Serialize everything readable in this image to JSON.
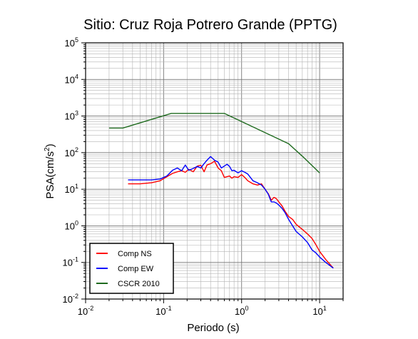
{
  "chart_data": {
    "type": "line",
    "title": "Sitio: Cruz Roja Potrero Grande (PPTG)",
    "xlabel": "Periodo (s)",
    "ylabel": "PSA(cm/s",
    "ylabel_sup": "2",
    "ylabel_close": ")",
    "x_scale": "log",
    "y_scale": "log",
    "xlim": [
      0.01,
      20
    ],
    "ylim": [
      0.01,
      100000
    ],
    "grid": true,
    "legend_position": "bottom-left",
    "x_ticks": [
      {
        "value": 0.01,
        "base": "10",
        "exp": "-2"
      },
      {
        "value": 0.1,
        "base": "10",
        "exp": "-1"
      },
      {
        "value": 1,
        "base": "10",
        "exp": "0"
      },
      {
        "value": 10,
        "base": "10",
        "exp": "1"
      }
    ],
    "y_ticks": [
      {
        "value": 0.01,
        "base": "10",
        "exp": "-2"
      },
      {
        "value": 0.1,
        "base": "10",
        "exp": "-1"
      },
      {
        "value": 1,
        "base": "10",
        "exp": "0"
      },
      {
        "value": 10,
        "base": "10",
        "exp": "1"
      },
      {
        "value": 100,
        "base": "10",
        "exp": "2"
      },
      {
        "value": 1000,
        "base": "10",
        "exp": "3"
      },
      {
        "value": 10000,
        "base": "10",
        "exp": "4"
      },
      {
        "value": 100000,
        "base": "10",
        "exp": "5"
      }
    ],
    "series": [
      {
        "name": "Comp NS",
        "color": "#ff0000",
        "x": [
          0.035,
          0.05,
          0.07,
          0.09,
          0.11,
          0.13,
          0.15,
          0.17,
          0.19,
          0.21,
          0.24,
          0.27,
          0.3,
          0.33,
          0.36,
          0.4,
          0.45,
          0.5,
          0.55,
          0.6,
          0.65,
          0.7,
          0.75,
          0.8,
          0.9,
          1.0,
          1.1,
          1.2,
          1.4,
          1.6,
          1.8,
          2.0,
          2.2,
          2.4,
          2.6,
          2.8,
          3.0,
          3.3,
          3.6,
          4.0,
          4.5,
          5.0,
          6.0,
          7.0,
          8.0,
          9.0,
          10.0,
          12.0,
          15.0
        ],
        "y": [
          14,
          14,
          15,
          17,
          22,
          27,
          30,
          32,
          29,
          35,
          30,
          43,
          45,
          30,
          46,
          50,
          58,
          38,
          32,
          21,
          22,
          23,
          20,
          22,
          21,
          25,
          21,
          17,
          14,
          13,
          14,
          10,
          7.5,
          5,
          6,
          5.5,
          4.5,
          3.5,
          2.5,
          1.8,
          1.5,
          1.1,
          0.8,
          0.6,
          0.45,
          0.3,
          0.2,
          0.12,
          0.07
        ]
      },
      {
        "name": "Comp EW",
        "color": "#0000ff",
        "x": [
          0.035,
          0.05,
          0.07,
          0.09,
          0.11,
          0.13,
          0.15,
          0.17,
          0.19,
          0.21,
          0.24,
          0.27,
          0.3,
          0.33,
          0.36,
          0.4,
          0.45,
          0.5,
          0.55,
          0.6,
          0.65,
          0.7,
          0.75,
          0.8,
          0.9,
          1.0,
          1.1,
          1.2,
          1.4,
          1.6,
          1.8,
          2.0,
          2.2,
          2.4,
          2.6,
          2.8,
          3.0,
          3.3,
          3.6,
          4.0,
          4.5,
          5.0,
          6.0,
          7.0,
          8.0,
          9.0,
          10.0,
          12.0,
          15.0
        ],
        "y": [
          18,
          18,
          18,
          19,
          23,
          33,
          38,
          32,
          46,
          33,
          37,
          42,
          38,
          50,
          62,
          78,
          62,
          55,
          38,
          43,
          48,
          42,
          32,
          33,
          28,
          32,
          29,
          26,
          17,
          15,
          13,
          10,
          7.3,
          4.5,
          4.5,
          4.2,
          3.7,
          3.0,
          2.3,
          1.5,
          1.0,
          0.7,
          0.5,
          0.35,
          0.22,
          0.18,
          0.14,
          0.1,
          0.07
        ]
      },
      {
        "name": "CSCR 2010",
        "color": "#1f6b1f",
        "x": [
          0.02,
          0.03,
          0.125,
          0.6,
          4.0,
          6.0,
          10.0
        ],
        "y": [
          470,
          470,
          1180,
          1180,
          175,
          80,
          28
        ]
      }
    ]
  }
}
